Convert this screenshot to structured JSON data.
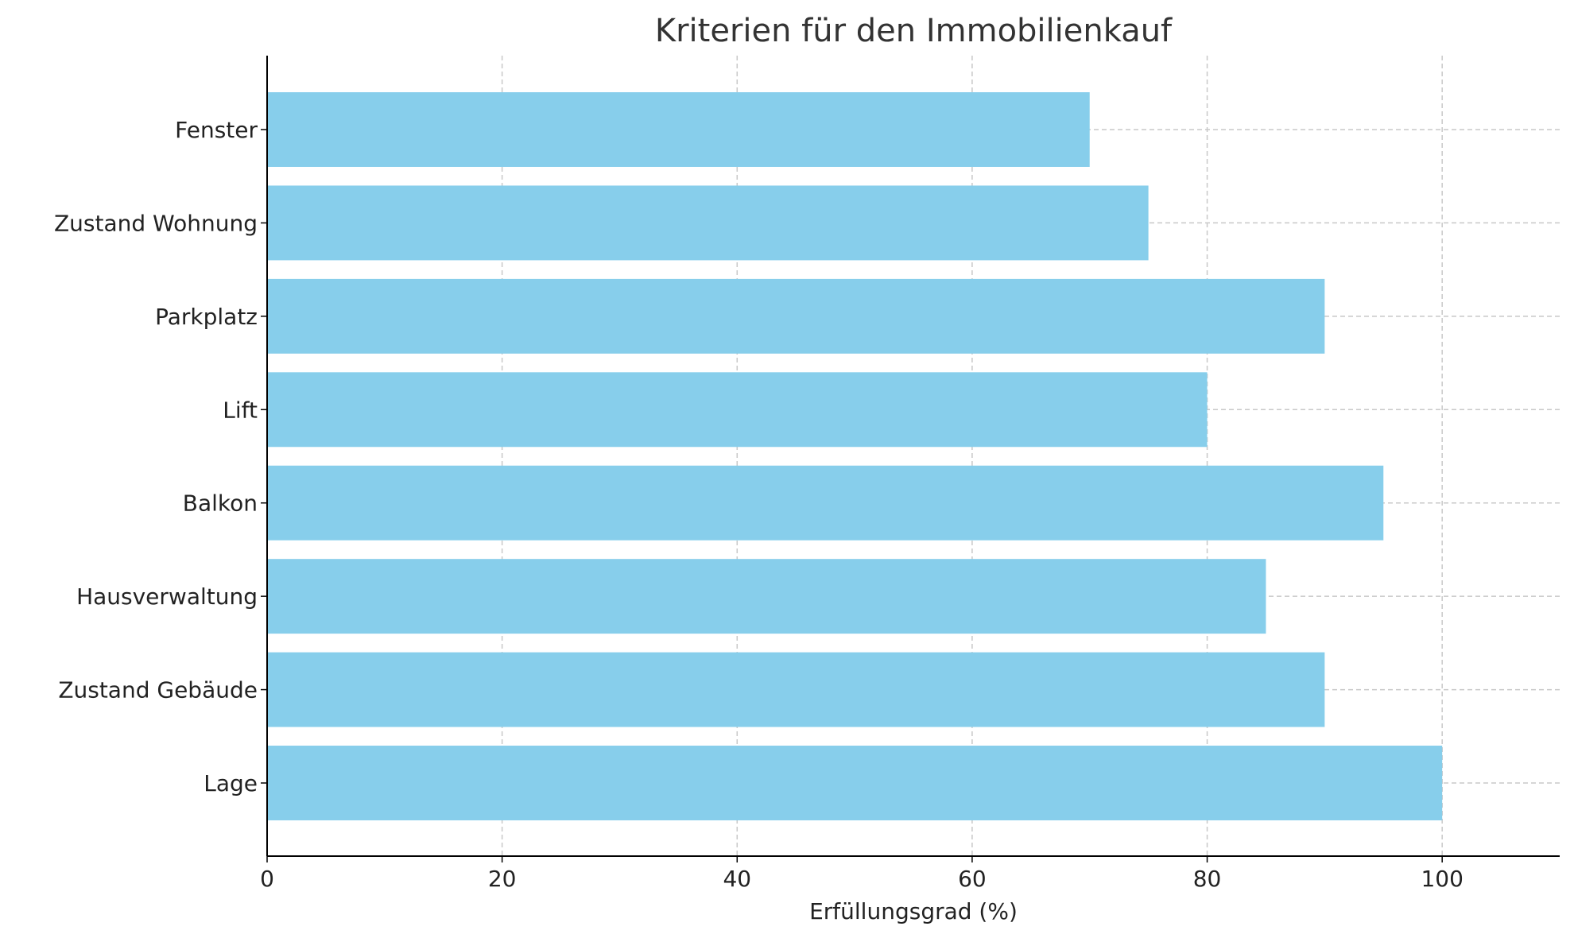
{
  "chart_data": {
    "type": "bar",
    "orientation": "horizontal",
    "title": "Kriterien für den Immobilienkauf",
    "xlabel": "Erfüllungsgrad (%)",
    "ylabel": "",
    "categories": [
      "Lage",
      "Zustand Gebäude",
      "Hausverwaltung",
      "Balkon",
      "Lift",
      "Parkplatz",
      "Zustand Wohnung",
      "Fenster"
    ],
    "values": [
      100,
      90,
      85,
      95,
      80,
      90,
      75,
      70
    ],
    "xlim": [
      0,
      110
    ],
    "xticks": [
      0,
      20,
      40,
      60,
      80,
      100
    ],
    "bar_color": "#87CEEB",
    "grid": true
  }
}
